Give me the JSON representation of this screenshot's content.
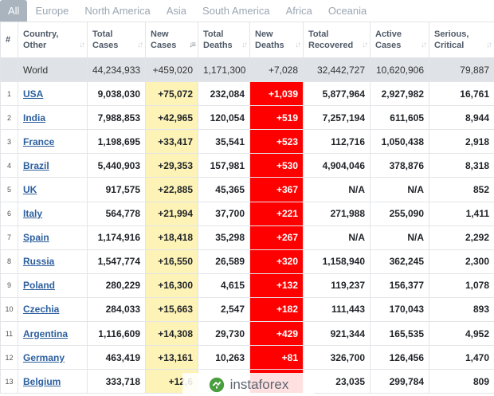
{
  "tabs": [
    {
      "label": "All",
      "active": true
    },
    {
      "label": "Europe",
      "active": false
    },
    {
      "label": "North America",
      "active": false
    },
    {
      "label": "Asia",
      "active": false
    },
    {
      "label": "South America",
      "active": false
    },
    {
      "label": "Africa",
      "active": false
    },
    {
      "label": "Oceania",
      "active": false
    }
  ],
  "columns": [
    {
      "key": "num",
      "label": "#"
    },
    {
      "key": "country",
      "label": "Country, Other"
    },
    {
      "key": "total_cases",
      "label": "Total Cases"
    },
    {
      "key": "new_cases",
      "label": "New Cases"
    },
    {
      "key": "total_deaths",
      "label": "Total Deaths"
    },
    {
      "key": "new_deaths",
      "label": "New Deaths"
    },
    {
      "key": "total_recovered",
      "label": "Total Recovered"
    },
    {
      "key": "active_cases",
      "label": "Active Cases"
    },
    {
      "key": "serious",
      "label": "Serious, Critical"
    }
  ],
  "world": {
    "country": "World",
    "total_cases": "44,234,933",
    "new_cases": "+459,020",
    "total_deaths": "1,171,300",
    "new_deaths": "+7,028",
    "total_recovered": "32,442,727",
    "active_cases": "10,620,906",
    "serious": "79,887"
  },
  "rows": [
    {
      "num": "1",
      "country": "USA",
      "total_cases": "9,038,030",
      "new_cases": "+75,072",
      "total_deaths": "232,084",
      "new_deaths": "+1,039",
      "total_recovered": "5,877,964",
      "active_cases": "2,927,982",
      "serious": "16,761"
    },
    {
      "num": "2",
      "country": "India",
      "total_cases": "7,988,853",
      "new_cases": "+42,965",
      "total_deaths": "120,054",
      "new_deaths": "+519",
      "total_recovered": "7,257,194",
      "active_cases": "611,605",
      "serious": "8,944"
    },
    {
      "num": "3",
      "country": "France",
      "total_cases": "1,198,695",
      "new_cases": "+33,417",
      "total_deaths": "35,541",
      "new_deaths": "+523",
      "total_recovered": "112,716",
      "active_cases": "1,050,438",
      "serious": "2,918"
    },
    {
      "num": "4",
      "country": "Brazil",
      "total_cases": "5,440,903",
      "new_cases": "+29,353",
      "total_deaths": "157,981",
      "new_deaths": "+530",
      "total_recovered": "4,904,046",
      "active_cases": "378,876",
      "serious": "8,318"
    },
    {
      "num": "5",
      "country": "UK",
      "total_cases": "917,575",
      "new_cases": "+22,885",
      "total_deaths": "45,365",
      "new_deaths": "+367",
      "total_recovered": "N/A",
      "active_cases": "N/A",
      "serious": "852"
    },
    {
      "num": "6",
      "country": "Italy",
      "total_cases": "564,778",
      "new_cases": "+21,994",
      "total_deaths": "37,700",
      "new_deaths": "+221",
      "total_recovered": "271,988",
      "active_cases": "255,090",
      "serious": "1,411"
    },
    {
      "num": "7",
      "country": "Spain",
      "total_cases": "1,174,916",
      "new_cases": "+18,418",
      "total_deaths": "35,298",
      "new_deaths": "+267",
      "total_recovered": "N/A",
      "active_cases": "N/A",
      "serious": "2,292"
    },
    {
      "num": "8",
      "country": "Russia",
      "total_cases": "1,547,774",
      "new_cases": "+16,550",
      "total_deaths": "26,589",
      "new_deaths": "+320",
      "total_recovered": "1,158,940",
      "active_cases": "362,245",
      "serious": "2,300"
    },
    {
      "num": "9",
      "country": "Poland",
      "total_cases": "280,229",
      "new_cases": "+16,300",
      "total_deaths": "4,615",
      "new_deaths": "+132",
      "total_recovered": "119,237",
      "active_cases": "156,377",
      "serious": "1,078"
    },
    {
      "num": "10",
      "country": "Czechia",
      "total_cases": "284,033",
      "new_cases": "+15,663",
      "total_deaths": "2,547",
      "new_deaths": "+182",
      "total_recovered": "111,443",
      "active_cases": "170,043",
      "serious": "893"
    },
    {
      "num": "11",
      "country": "Argentina",
      "total_cases": "1,116,609",
      "new_cases": "+14,308",
      "total_deaths": "29,730",
      "new_deaths": "+429",
      "total_recovered": "921,344",
      "active_cases": "165,535",
      "serious": "4,952"
    },
    {
      "num": "12",
      "country": "Germany",
      "total_cases": "463,419",
      "new_cases": "+13,161",
      "total_deaths": "10,263",
      "new_deaths": "+81",
      "total_recovered": "326,700",
      "active_cases": "126,456",
      "serious": "1,470"
    },
    {
      "num": "13",
      "country": "Belgium",
      "total_cases": "333,718",
      "new_cases": "+12,6",
      "total_deaths": "",
      "new_deaths": "",
      "total_recovered": "23,035",
      "active_cases": "299,784",
      "serious": "809"
    }
  ],
  "watermark": {
    "text": "instaforex",
    "icon": "instaforex-logo-icon"
  },
  "colors": {
    "new_deaths_bg": "#ff0000",
    "new_cases_bg": "#fdf3b6",
    "world_row_bg": "#dfe2e6",
    "link": "#2c5f9e",
    "active_tab_bg": "#a9b4bf"
  }
}
